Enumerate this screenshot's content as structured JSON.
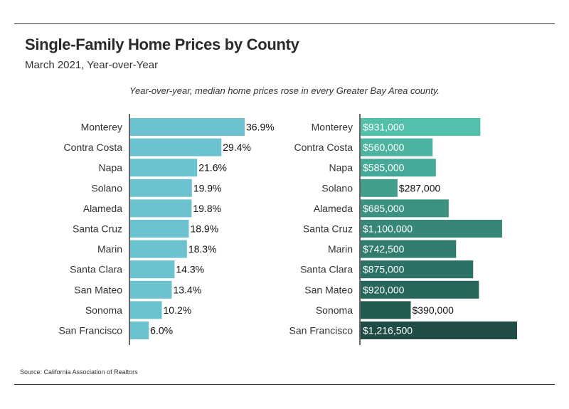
{
  "header": {
    "title": "Single-Family Home Prices by County",
    "subtitle": "March 2021, Year-over-Year",
    "note": "Year-over-year, median home prices rose in every Greater Bay Area county."
  },
  "footer": {
    "source": "Source:  California Association of Realtors"
  },
  "chart_data": [
    {
      "type": "bar",
      "orientation": "horizontal",
      "title": "",
      "categories": [
        "Monterey",
        "Contra Costa",
        "Napa",
        "Solano",
        "Alameda",
        "Santa Cruz",
        "Marin",
        "Santa Clara",
        "San Mateo",
        "Sonoma",
        "San Francisco"
      ],
      "values": [
        36.9,
        29.4,
        21.6,
        19.9,
        19.8,
        18.9,
        18.3,
        14.3,
        13.4,
        10.2,
        6.0
      ],
      "labels": [
        "36.9%",
        "29.4%",
        "21.6%",
        "19.9%",
        "19.8%",
        "18.9%",
        "18.3%",
        "14.3%",
        "13.4%",
        "10.2%",
        "6.0%"
      ],
      "unit": "%",
      "color": "#6cc3cf",
      "xlim": [
        0,
        40
      ],
      "grid": false,
      "legend": "none"
    },
    {
      "type": "bar",
      "orientation": "horizontal",
      "title": "",
      "categories": [
        "Monterey",
        "Contra Costa",
        "Napa",
        "Solano",
        "Alameda",
        "Santa Cruz",
        "Marin",
        "Santa Clara",
        "San Mateo",
        "Sonoma",
        "San Francisco"
      ],
      "values": [
        931000,
        560000,
        585000,
        287000,
        685000,
        1100000,
        742500,
        875000,
        920000,
        390000,
        1216500
      ],
      "labels": [
        "$931,000",
        "$560,000",
        "$585,000",
        "$287,000",
        "$685,000",
        "$1,100,000",
        "$742,500",
        "$875,000",
        "$920,000",
        "$390,000",
        "$1,216,500"
      ],
      "unit": "$",
      "colors": [
        "#52c0ab",
        "#4cb3a0",
        "#46a896",
        "#419d8c",
        "#3b9282",
        "#368778",
        "#317c6f",
        "#2b7165",
        "#26665b",
        "#215b52",
        "#1f4d45"
      ],
      "xlim": [
        0,
        1216500
      ],
      "grid": false,
      "legend": "none"
    }
  ]
}
